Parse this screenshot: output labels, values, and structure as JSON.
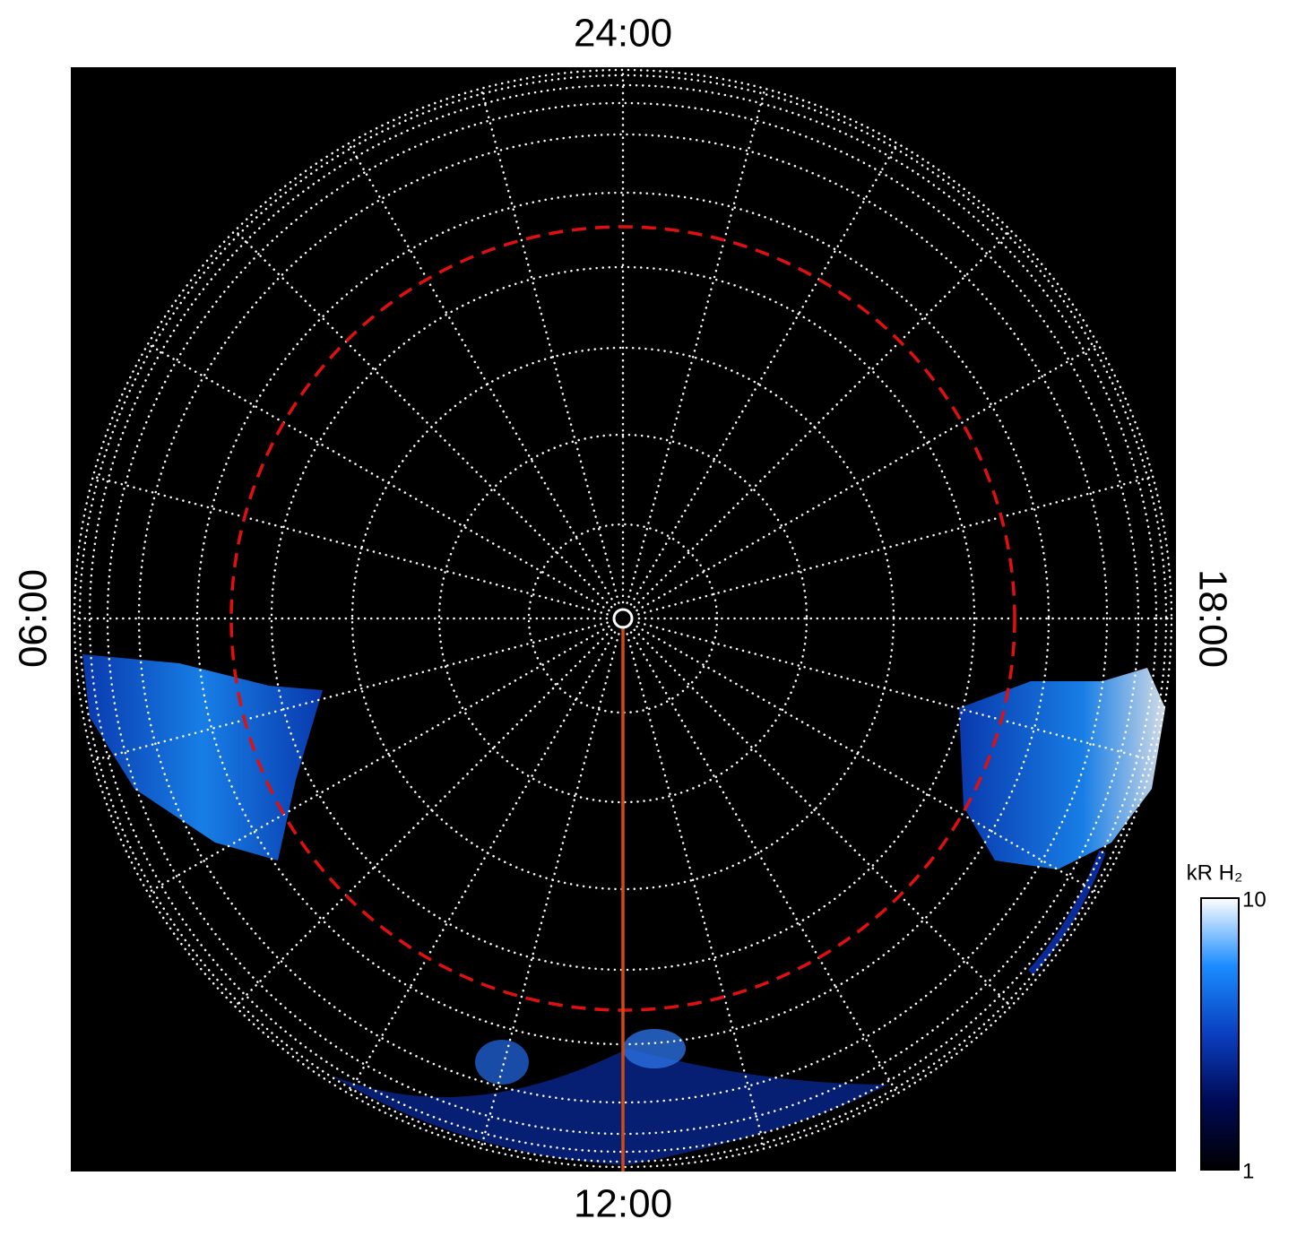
{
  "chart_data": {
    "type": "polar-image",
    "labels": {
      "top": "24:00",
      "bottom": "12:00",
      "left": "06:00",
      "right": "18:00"
    },
    "colorbar": {
      "label": "kR H₂",
      "lim": [
        1,
        10
      ],
      "ticks": [
        1,
        10
      ],
      "log": true,
      "colors": [
        "#000000",
        "#000a55",
        "#0a3fc0",
        "#1a8cff",
        "#ffffff"
      ]
    }
  }
}
